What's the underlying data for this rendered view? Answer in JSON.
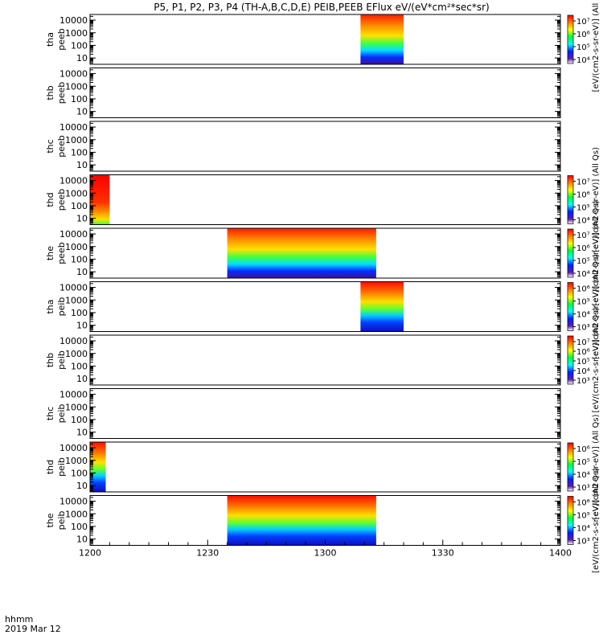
{
  "chart_data": {
    "type": "heatmap",
    "title": "P5, P1, P2, P3, P4 (TH-A,B,C,D,E) PEIB,PEEB EFlux eV/(eV*cm²*sec*sr)",
    "x_ticks": [
      "1200",
      "1230",
      "1300",
      "1330",
      "1400"
    ],
    "x_domain_minutes": [
      0,
      120
    ],
    "time_label": "hhmm",
    "date_label": "2019 Mar 12",
    "y_scale": "log",
    "y_ticks": [
      "10",
      "100",
      "1000",
      "10000"
    ],
    "colorbar_palette": [
      "#ffffff",
      "#5a1fa8",
      "#0020ff",
      "#00ffff",
      "#00ff40",
      "#ffff00",
      "#ff8000",
      "#ff0000"
    ],
    "series": [
      {
        "line1": "tha",
        "line2": "peeb",
        "blocks": [
          {
            "x": [
              69,
              80
            ],
            "profile": "electron"
          }
        ],
        "colorbar": {
          "ticks": [
            "10⁷",
            "10⁶",
            "10⁵",
            "10⁴"
          ],
          "label": "[eV/(cm2-s-sr-eV)] (All Qs)"
        }
      },
      {
        "line1": "thb",
        "line2": "peeb",
        "blocks": [],
        "colorbar": null
      },
      {
        "line1": "thc",
        "line2": "peeb",
        "blocks": [],
        "colorbar": null
      },
      {
        "line1": "thd",
        "line2": "peeb",
        "blocks": [
          {
            "x": [
              0,
              5
            ],
            "profile": "high"
          }
        ],
        "colorbar": {
          "ticks": [
            "10⁷",
            "10⁶",
            "10⁵",
            "10⁴"
          ],
          "label": "[eV/(cm2-s-sr-eV)] (All Qs)"
        }
      },
      {
        "line1": "the",
        "line2": "peeb",
        "blocks": [
          {
            "x": [
              35,
              56
            ],
            "profile": "electron"
          },
          {
            "x": [
              56,
              73
            ],
            "profile": "electron"
          }
        ],
        "colorbar": {
          "ticks": [
            "10⁷",
            "10⁶",
            "10⁵",
            "10⁴"
          ],
          "label": "[eV/(cm2-s-sr-eV)] (All Qs)"
        }
      },
      {
        "line1": "tha",
        "line2": "peib",
        "blocks": [
          {
            "x": [
              69,
              80
            ],
            "profile": "ion"
          }
        ],
        "colorbar": {
          "ticks": [
            "10⁶",
            "10⁵",
            "10⁴",
            "10³"
          ],
          "label": "[eV/(cm2-s-sr-eV)] (All Qs)"
        }
      },
      {
        "line1": "thb",
        "line2": "peib",
        "blocks": [],
        "colorbar": {
          "ticks": [
            "10⁷",
            "10⁶",
            "10⁵",
            "10⁴",
            "10³"
          ],
          "label": "[eV/(cm2-s-sr-eV)] (All Qs)"
        }
      },
      {
        "line1": "thc",
        "line2": "peib",
        "blocks": [],
        "colorbar": null
      },
      {
        "line1": "thd",
        "line2": "peib",
        "blocks": [
          {
            "x": [
              0,
              4
            ],
            "profile": "ion"
          }
        ],
        "colorbar": {
          "ticks": [
            "10⁶",
            "10⁵",
            "10⁴",
            "10³"
          ],
          "label": "[eV/(cm2-s-sr-eV)] (All Qs)"
        }
      },
      {
        "line1": "the",
        "line2": "peib",
        "blocks": [
          {
            "x": [
              35,
              56
            ],
            "profile": "ion"
          },
          {
            "x": [
              56,
              73
            ],
            "profile": "ion"
          }
        ],
        "colorbar": {
          "ticks": [
            "10⁶",
            "10⁵",
            "10⁴",
            "10³"
          ],
          "label": "[eV/(cm2-s-sr-eV)] (All Qs)"
        }
      }
    ]
  }
}
